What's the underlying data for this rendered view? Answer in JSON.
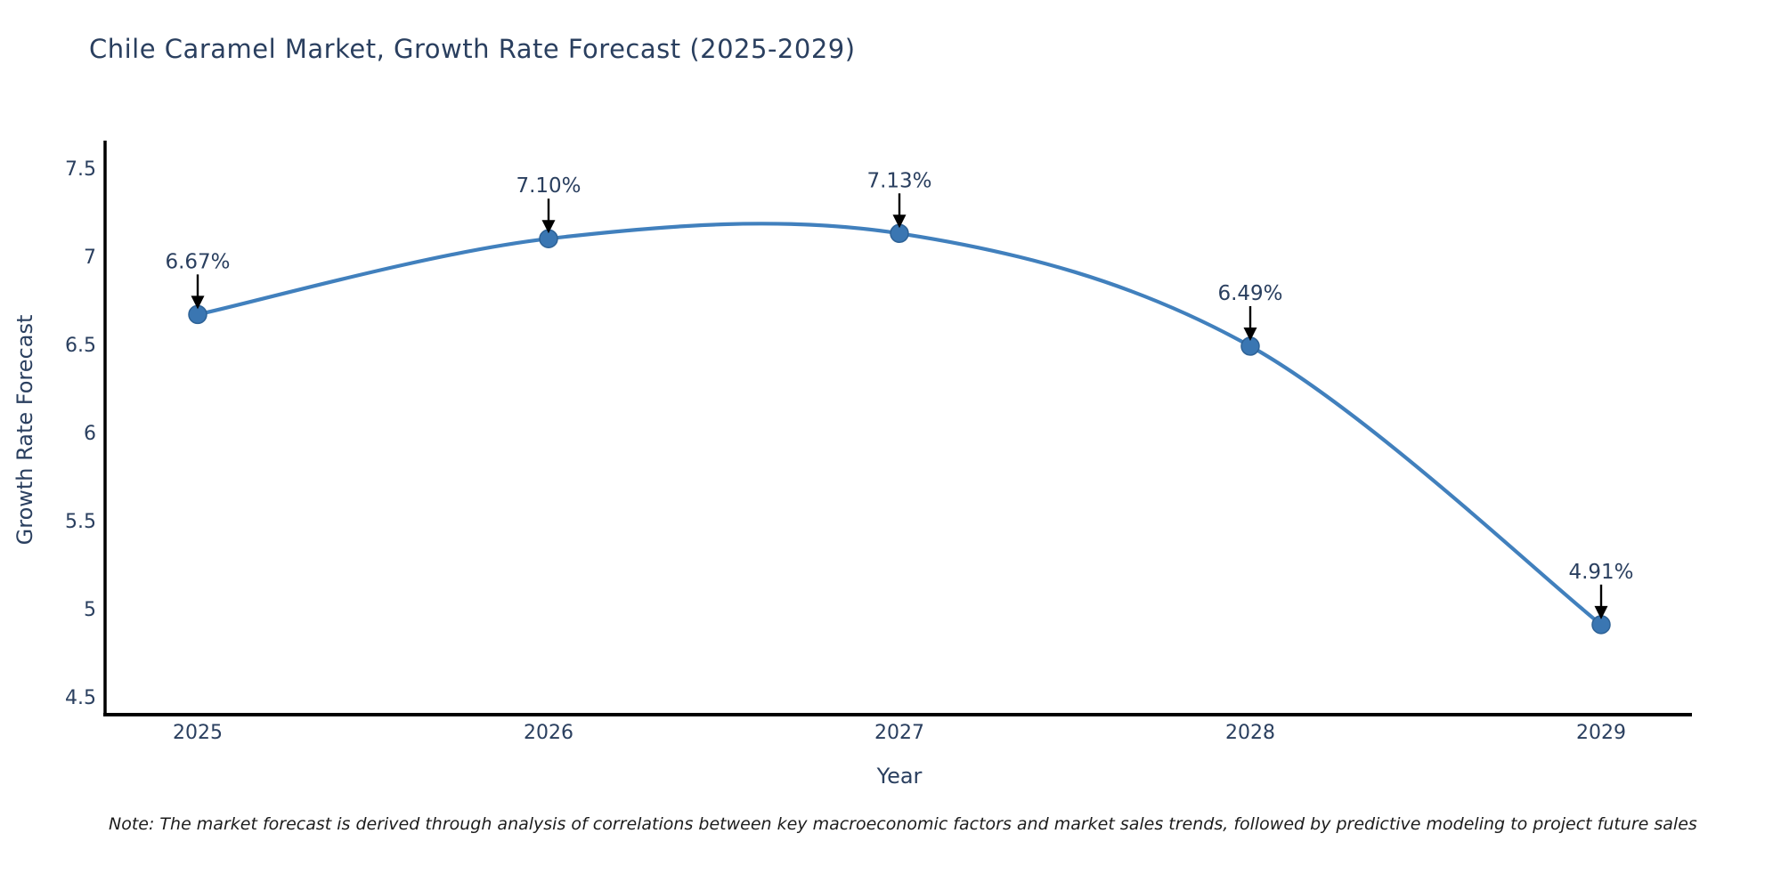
{
  "title": "Chile Caramel Market, Growth Rate Forecast (2025-2029)",
  "note": "Note: The market forecast is derived through analysis of correlations between key macroeconomic factors and market sales trends, followed by predictive modeling to project future sales",
  "chart_data": {
    "type": "line",
    "title": "Chile Caramel Market, Growth Rate Forecast (2025-2029)",
    "xlabel": "Year",
    "ylabel": "Growth Rate Forecast",
    "categories": [
      "2025",
      "2026",
      "2027",
      "2028",
      "2029"
    ],
    "values": [
      6.67,
      7.1,
      7.13,
      6.49,
      4.91
    ],
    "point_labels": [
      "6.67%",
      "7.10%",
      "7.13%",
      "6.49%",
      "4.91%"
    ],
    "yticks": [
      4.5,
      5,
      5.5,
      6,
      6.5,
      7,
      7.5
    ],
    "ylim": [
      4.4,
      7.66
    ],
    "curve": "spline",
    "grid": false,
    "legend_position": "none",
    "line_color": "#4180bd",
    "marker_color": "#3a76b2",
    "marker_edge_color": "#2e6296",
    "axis_color": "#000000",
    "arrow_color": "#000000",
    "text_color": "#2a3f5f"
  }
}
